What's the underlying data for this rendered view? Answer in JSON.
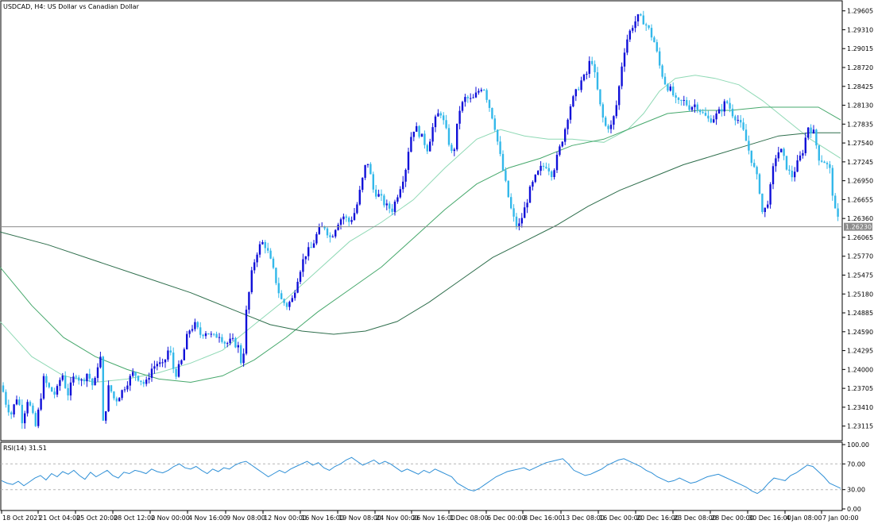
{
  "chart_data": [
    {
      "type": "candlestick",
      "title": "USDCAD, H4:  US Dollar vs Canadian Dollar",
      "ylim": [
        1.229,
        1.2975
      ],
      "price_ticks": [
        "1.29605",
        "1.29310",
        "1.29015",
        "1.28720",
        "1.28425",
        "1.28130",
        "1.27835",
        "1.27540",
        "1.27245",
        "1.26950",
        "1.26655",
        "1.26360",
        "1.26065",
        "1.25770",
        "1.25475",
        "1.25180",
        "1.24885",
        "1.24590",
        "1.24295",
        "1.24000",
        "1.23705",
        "1.23410",
        "1.23115"
      ],
      "current_price": "1.26230",
      "current_price_value": 1.2623,
      "x_labels": [
        "18 Oct 2021",
        "21 Oct 04:00",
        "25 Oct 20:00",
        "28 Oct 12:00",
        "2 Nov 00:00",
        "4 Nov 16:00",
        "9 Nov 08:00",
        "12 Nov 00:00",
        "16 Nov 16:00",
        "19 Nov 08:00",
        "24 Nov 00:00",
        "26 Nov 16:00",
        "1 Dec 08:00",
        "6 Dec 00:00",
        "8 Dec 16:00",
        "13 Dec 08:00",
        "16 Dec 00:00",
        "20 Dec 16:00",
        "23 Dec 08:00",
        "28 Dec 00:00",
        "30 Dec 16:00",
        "4 Jan 08:00",
        "7 Jan 00:00"
      ],
      "close_path": [
        [
          0,
          1.2385
        ],
        [
          8,
          1.2345
        ],
        [
          14,
          1.233
        ],
        [
          22,
          1.236
        ],
        [
          28,
          1.232
        ],
        [
          35,
          1.2355
        ],
        [
          45,
          1.231
        ],
        [
          55,
          1.2385
        ],
        [
          62,
          1.237
        ],
        [
          70,
          1.236
        ],
        [
          78,
          1.2395
        ],
        [
          85,
          1.236
        ],
        [
          95,
          1.2395
        ],
        [
          102,
          1.238
        ],
        [
          110,
          1.2395
        ],
        [
          118,
          1.237
        ],
        [
          126,
          1.243
        ],
        [
          130,
          1.231
        ],
        [
          137,
          1.2375
        ],
        [
          145,
          1.235
        ],
        [
          153,
          1.2365
        ],
        [
          160,
          1.238
        ],
        [
          168,
          1.2395
        ],
        [
          176,
          1.2385
        ],
        [
          183,
          1.2375
        ],
        [
          190,
          1.24
        ],
        [
          198,
          1.241
        ],
        [
          205,
          1.2405
        ],
        [
          213,
          1.2435
        ],
        [
          220,
          1.239
        ],
        [
          228,
          1.241
        ],
        [
          237,
          1.246
        ],
        [
          245,
          1.247
        ],
        [
          252,
          1.2455
        ],
        [
          260,
          1.246
        ],
        [
          268,
          1.245
        ],
        [
          276,
          1.2455
        ],
        [
          284,
          1.244
        ],
        [
          292,
          1.2445
        ],
        [
          300,
          1.2435
        ],
        [
          305,
          1.24
        ],
        [
          310,
          1.249
        ],
        [
          318,
          1.256
        ],
        [
          325,
          1.259
        ],
        [
          332,
          1.26
        ],
        [
          338,
          1.258
        ],
        [
          345,
          1.255
        ],
        [
          353,
          1.251
        ],
        [
          361,
          1.25
        ],
        [
          368,
          1.251
        ],
        [
          376,
          1.255
        ],
        [
          384,
          1.258
        ],
        [
          392,
          1.259
        ],
        [
          400,
          1.2615
        ],
        [
          408,
          1.2625
        ],
        [
          416,
          1.2605
        ],
        [
          425,
          1.263
        ],
        [
          432,
          1.264
        ],
        [
          440,
          1.263
        ],
        [
          448,
          1.265
        ],
        [
          455,
          1.269
        ],
        [
          462,
          1.273
        ],
        [
          470,
          1.268
        ],
        [
          478,
          1.267
        ],
        [
          486,
          1.2655
        ],
        [
          494,
          1.265
        ],
        [
          502,
          1.268
        ],
        [
          510,
          1.271
        ],
        [
          516,
          1.276
        ],
        [
          522,
          1.278
        ],
        [
          530,
          1.2765
        ],
        [
          538,
          1.2745
        ],
        [
          546,
          1.2785
        ],
        [
          554,
          1.2805
        ],
        [
          562,
          1.277
        ],
        [
          570,
          1.273
        ],
        [
          578,
          1.2805
        ],
        [
          586,
          1.2825
        ],
        [
          594,
          1.282
        ],
        [
          602,
          1.2835
        ],
        [
          608,
          1.2845
        ],
        [
          615,
          1.2815
        ],
        [
          622,
          1.2785
        ],
        [
          630,
          1.273
        ],
        [
          638,
          1.268
        ],
        [
          645,
          1.264
        ],
        [
          652,
          1.262
        ],
        [
          660,
          1.265
        ],
        [
          667,
          1.268
        ],
        [
          674,
          1.27
        ],
        [
          681,
          1.2715
        ],
        [
          688,
          1.272
        ],
        [
          695,
          1.2705
        ],
        [
          702,
          1.2735
        ],
        [
          710,
          1.277
        ],
        [
          717,
          1.281
        ],
        [
          724,
          1.283
        ],
        [
          731,
          1.285
        ],
        [
          738,
          1.286
        ],
        [
          744,
          1.289
        ],
        [
          750,
          1.285
        ],
        [
          757,
          1.28
        ],
        [
          762,
          1.278
        ],
        [
          770,
          1.278
        ],
        [
          777,
          1.282
        ],
        [
          784,
          1.289
        ],
        [
          790,
          1.292
        ],
        [
          797,
          1.294
        ],
        [
          803,
          1.295
        ],
        [
          810,
          1.2945
        ],
        [
          817,
          1.293
        ],
        [
          824,
          1.291
        ],
        [
          831,
          1.287
        ],
        [
          838,
          1.2845
        ],
        [
          845,
          1.2835
        ],
        [
          852,
          1.2815
        ],
        [
          860,
          1.282
        ],
        [
          868,
          1.281
        ],
        [
          876,
          1.2815
        ],
        [
          884,
          1.28
        ],
        [
          892,
          1.279
        ],
        [
          900,
          1.2795
        ],
        [
          907,
          1.2805
        ],
        [
          914,
          1.282
        ],
        [
          922,
          1.28
        ],
        [
          929,
          1.279
        ],
        [
          936,
          1.277
        ],
        [
          943,
          1.274
        ],
        [
          950,
          1.271
        ],
        [
          955,
          1.269
        ],
        [
          960,
          1.264
        ],
        [
          968,
          1.267
        ],
        [
          975,
          1.273
        ],
        [
          982,
          1.2745
        ],
        [
          989,
          1.272
        ],
        [
          996,
          1.27
        ],
        [
          1003,
          1.272
        ],
        [
          1010,
          1.274
        ],
        [
          1017,
          1.278
        ],
        [
          1024,
          1.277
        ],
        [
          1031,
          1.273
        ],
        [
          1038,
          1.2725
        ],
        [
          1045,
          1.271
        ],
        [
          1050,
          1.265
        ],
        [
          1058,
          1.2623
        ]
      ],
      "moving_averages": [
        {
          "color": "#8fd9b5",
          "points": [
            [
              0,
              1.2475
            ],
            [
              40,
              1.242
            ],
            [
              80,
              1.239
            ],
            [
              120,
              1.238
            ],
            [
              160,
              1.2385
            ],
            [
              200,
              1.2395
            ],
            [
              240,
              1.241
            ],
            [
              280,
              1.243
            ],
            [
              320,
              1.247
            ],
            [
              360,
              1.251
            ],
            [
              400,
              1.2555
            ],
            [
              440,
              1.26
            ],
            [
              480,
              1.263
            ],
            [
              520,
              1.2665
            ],
            [
              560,
              1.2715
            ],
            [
              600,
              1.276
            ],
            [
              630,
              1.2775
            ],
            [
              660,
              1.2765
            ],
            [
              690,
              1.276
            ],
            [
              720,
              1.276
            ],
            [
              760,
              1.2755
            ],
            [
              790,
              1.2775
            ],
            [
              810,
              1.28
            ],
            [
              830,
              1.2835
            ],
            [
              850,
              1.2855
            ],
            [
              875,
              1.286
            ],
            [
              900,
              1.2855
            ],
            [
              930,
              1.2845
            ],
            [
              960,
              1.282
            ],
            [
              990,
              1.279
            ],
            [
              1020,
              1.276
            ],
            [
              1058,
              1.273
            ]
          ]
        },
        {
          "color": "#46a86c",
          "points": [
            [
              0,
              1.256
            ],
            [
              40,
              1.25
            ],
            [
              80,
              1.245
            ],
            [
              120,
              1.242
            ],
            [
              160,
              1.24
            ],
            [
              200,
              1.2385
            ],
            [
              240,
              1.238
            ],
            [
              280,
              1.239
            ],
            [
              320,
              1.2415
            ],
            [
              360,
              1.245
            ],
            [
              400,
              1.249
            ],
            [
              440,
              1.2525
            ],
            [
              480,
              1.256
            ],
            [
              520,
              1.2605
            ],
            [
              560,
              1.265
            ],
            [
              600,
              1.269
            ],
            [
              640,
              1.2715
            ],
            [
              680,
              1.273
            ],
            [
              720,
              1.275
            ],
            [
              760,
              1.276
            ],
            [
              800,
              1.278
            ],
            [
              840,
              1.28
            ],
            [
              880,
              1.2805
            ],
            [
              920,
              1.2805
            ],
            [
              960,
              1.281
            ],
            [
              1000,
              1.281
            ],
            [
              1030,
              1.281
            ],
            [
              1058,
              1.279
            ]
          ]
        },
        {
          "color": "#2e6e4c",
          "points": [
            [
              0,
              1.2615
            ],
            [
              60,
              1.2595
            ],
            [
              120,
              1.257
            ],
            [
              180,
              1.2545
            ],
            [
              240,
              1.252
            ],
            [
              300,
              1.249
            ],
            [
              340,
              1.247
            ],
            [
              380,
              1.246
            ],
            [
              420,
              1.2455
            ],
            [
              460,
              1.246
            ],
            [
              500,
              1.2475
            ],
            [
              540,
              1.2505
            ],
            [
              580,
              1.254
            ],
            [
              620,
              1.2575
            ],
            [
              660,
              1.26
            ],
            [
              700,
              1.2625
            ],
            [
              740,
              1.2655
            ],
            [
              780,
              1.268
            ],
            [
              820,
              1.27
            ],
            [
              860,
              1.272
            ],
            [
              900,
              1.2735
            ],
            [
              940,
              1.275
            ],
            [
              980,
              1.2765
            ],
            [
              1020,
              1.277
            ],
            [
              1058,
              1.277
            ]
          ]
        }
      ]
    },
    {
      "type": "line",
      "title": "RSI(14) 31.51",
      "ylim": [
        0,
        100
      ],
      "y_ticks": [
        "100.00",
        "70.00",
        "30.00",
        "0.00"
      ],
      "levels": [
        70,
        30
      ],
      "values": [
        44,
        40,
        38,
        43,
        36,
        42,
        48,
        52,
        45,
        55,
        50,
        58,
        54,
        60,
        52,
        46,
        57,
        50,
        55,
        60,
        52,
        48,
        57,
        55,
        60,
        58,
        55,
        62,
        58,
        56,
        60,
        66,
        70,
        64,
        62,
        66,
        60,
        55,
        62,
        58,
        64,
        62,
        68,
        72,
        74,
        68,
        62,
        56,
        50,
        55,
        60,
        56,
        62,
        66,
        70,
        74,
        68,
        72,
        64,
        60,
        66,
        70,
        76,
        80,
        74,
        68,
        72,
        76,
        70,
        74,
        70,
        64,
        58,
        62,
        58,
        54,
        60,
        56,
        62,
        58,
        54,
        50,
        40,
        35,
        30,
        28,
        32,
        38,
        44,
        50,
        54,
        58,
        60,
        62,
        64,
        60,
        64,
        68,
        72,
        74,
        76,
        78,
        70,
        60,
        56,
        52,
        54,
        58,
        62,
        68,
        72,
        76,
        78,
        74,
        70,
        66,
        60,
        56,
        50,
        46,
        42,
        44,
        48,
        44,
        40,
        42,
        46,
        50,
        52,
        54,
        50,
        46,
        42,
        38,
        34,
        28,
        24,
        30,
        40,
        48,
        46,
        44,
        52,
        56,
        62,
        68,
        66,
        58,
        50,
        40,
        36,
        32
      ]
    }
  ]
}
